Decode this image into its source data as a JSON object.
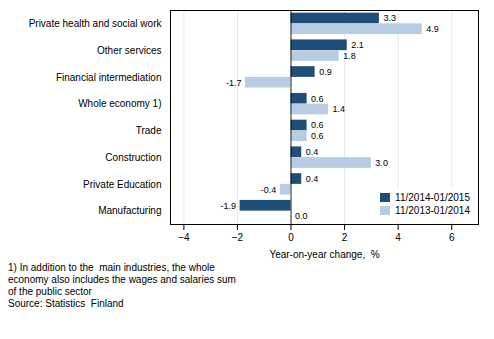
{
  "chart_data": {
    "type": "bar",
    "orientation": "horizontal",
    "categories": [
      "Manufacturing",
      "Private Education",
      "Construction",
      "Trade",
      "Whole economy 1)",
      "Financial intermediation",
      "Other services",
      "Private health and social work"
    ],
    "series": [
      {
        "name": "11/2014-01/2015",
        "color": "#1F4E79",
        "values": [
          -1.9,
          0.4,
          0.4,
          0.6,
          0.6,
          0.9,
          2.1,
          3.3
        ],
        "value_labels": [
          "-1.9",
          "0.4",
          "0.4",
          "0.6",
          "0.6",
          "0.9",
          "2.1",
          "3.3"
        ]
      },
      {
        "name": "11/2013-01/2014",
        "color": "#B8CCE4",
        "values": [
          0.0,
          -0.4,
          3.0,
          0.6,
          1.4,
          -1.7,
          1.8,
          4.9
        ],
        "value_labels": [
          "0.0",
          "-0.4",
          "3.0",
          "0.6",
          "1.4",
          "-1.7",
          "1.8",
          "4.9"
        ]
      }
    ],
    "xlim": [
      -4.5,
      7.0
    ],
    "xticks": [
      -4,
      -2,
      0,
      2,
      4,
      6
    ],
    "xlabel": "Year-on-year change,  %",
    "grid": true,
    "data_labels": true,
    "legend": "lower right",
    "annotations": [
      "1) In addition to the  main industries, the whole",
      "economy also includes the wages and salaries sum",
      "of the public sector",
      "Source: Statistics  Finland"
    ]
  }
}
